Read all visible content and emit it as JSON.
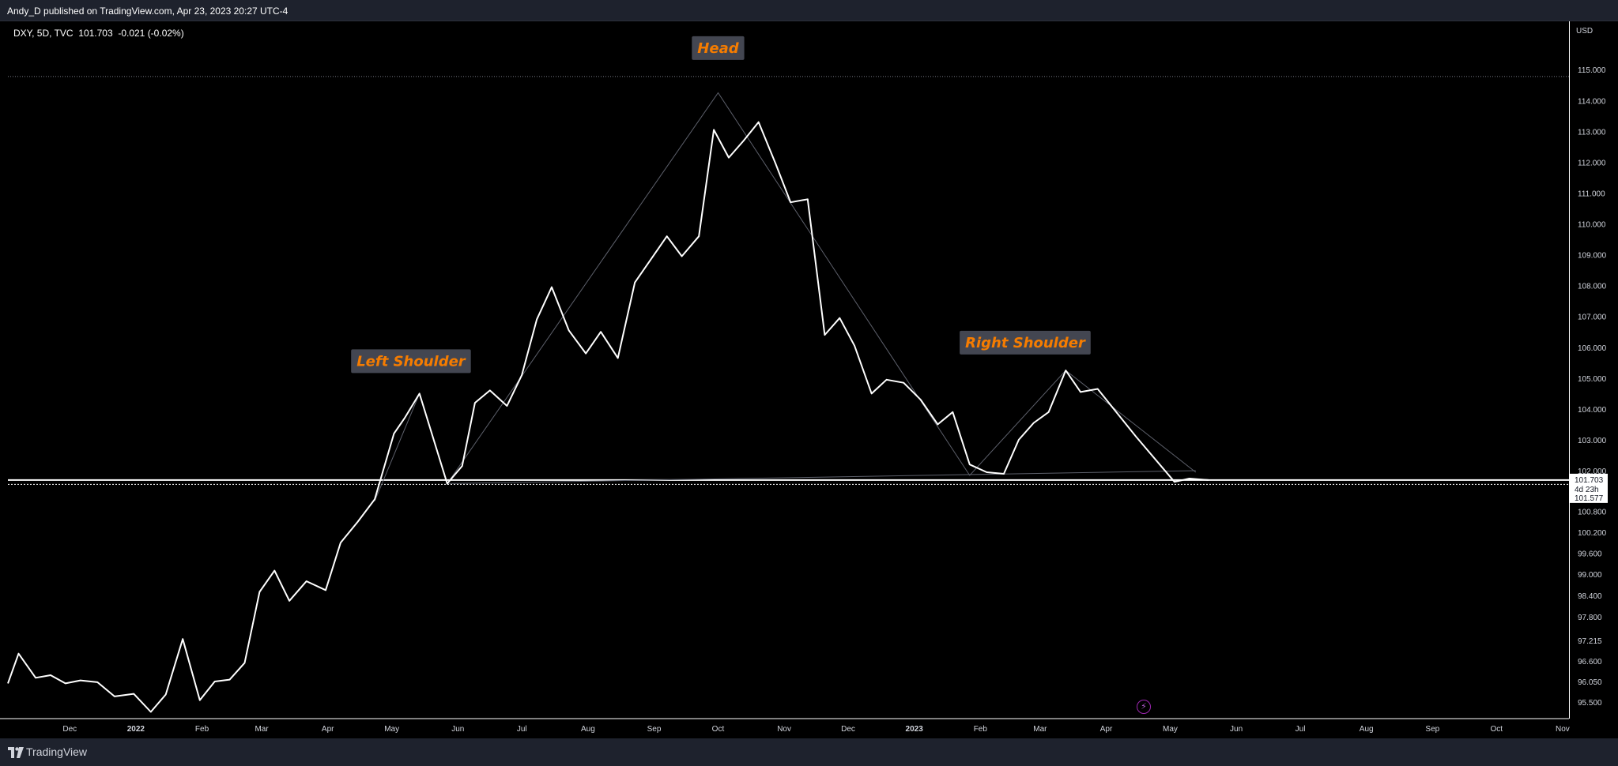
{
  "header": {
    "published": "Andy_D published on TradingView.com, Apr 23, 2023 20:27 UTC-4"
  },
  "legend": {
    "symbol": "DXY, 5D, TVC",
    "price": "101.703",
    "change": "-0.021 (-0.02%)"
  },
  "footer": {
    "brand": "TradingView"
  },
  "price_scale": {
    "currency": "USD",
    "last_price": "101.703",
    "countdown": "4d 23h",
    "prev_close": "101.577"
  },
  "annotations": [
    {
      "text": "Head",
      "anchor_date": "2022-10-01",
      "anchor_price": 115.7
    },
    {
      "text": "Left Shoulder",
      "anchor_date": "2022-05-10",
      "anchor_price": 105.55
    },
    {
      "text": "Right Shoulder",
      "anchor_date": "2023-02-22",
      "anchor_price": 106.15
    }
  ],
  "colors": {
    "background": "#000000",
    "price_line": "#ffffff",
    "pattern_line": "#5d606b",
    "label_bg": "#434651",
    "label_text": "#f57c00",
    "panel": "#1e222d"
  },
  "chart_data": {
    "type": "line",
    "title": "DXY, 5D, TVC",
    "xlabel": "",
    "ylabel": "USD",
    "ylim": [
      95.1,
      115.8
    ],
    "xlim": [
      "2021-11-02",
      "2023-11-04"
    ],
    "grid": false,
    "x_ticks": [
      {
        "label": "Dec",
        "date": "2021-12-01"
      },
      {
        "label": "2022",
        "date": "2022-01-01"
      },
      {
        "label": "Feb",
        "date": "2022-02-01"
      },
      {
        "label": "Mar",
        "date": "2022-03-01"
      },
      {
        "label": "Apr",
        "date": "2022-04-01"
      },
      {
        "label": "May",
        "date": "2022-05-01"
      },
      {
        "label": "Jun",
        "date": "2022-06-01"
      },
      {
        "label": "Jul",
        "date": "2022-07-01"
      },
      {
        "label": "Aug",
        "date": "2022-08-01"
      },
      {
        "label": "Sep",
        "date": "2022-09-01"
      },
      {
        "label": "Oct",
        "date": "2022-10-01"
      },
      {
        "label": "Nov",
        "date": "2022-11-01"
      },
      {
        "label": "Dec",
        "date": "2022-12-01"
      },
      {
        "label": "2023",
        "date": "2023-01-01"
      },
      {
        "label": "Feb",
        "date": "2023-02-01"
      },
      {
        "label": "Mar",
        "date": "2023-03-01"
      },
      {
        "label": "Apr",
        "date": "2023-04-01"
      },
      {
        "label": "May",
        "date": "2023-05-01"
      },
      {
        "label": "Jun",
        "date": "2023-06-01"
      },
      {
        "label": "Jul",
        "date": "2023-07-01"
      },
      {
        "label": "Aug",
        "date": "2023-08-01"
      },
      {
        "label": "Sep",
        "date": "2023-09-01"
      },
      {
        "label": "Oct",
        "date": "2023-10-01"
      },
      {
        "label": "Nov",
        "date": "2023-11-01"
      }
    ],
    "y_ticks": [
      "115.000",
      "114.000",
      "113.000",
      "112.000",
      "111.000",
      "110.000",
      "109.000",
      "108.000",
      "107.000",
      "106.000",
      "105.000",
      "104.000",
      "103.000",
      "102.000",
      "100.800",
      "100.200",
      "99.600",
      "99.000",
      "98.400",
      "97.800",
      "97.215",
      "96.600",
      "96.050",
      "95.500"
    ],
    "reference_lines": [
      {
        "name": "last-price",
        "price": 101.703
      },
      {
        "name": "prev-close",
        "price": 101.577
      },
      {
        "name": "high",
        "price": 114.78
      }
    ],
    "series": [
      {
        "points": [
          [
            "2021-11-02",
            96.0
          ],
          [
            "2021-11-07",
            96.82
          ],
          [
            "2021-11-15",
            96.15
          ],
          [
            "2021-11-22",
            96.22
          ],
          [
            "2021-11-29",
            96.0
          ],
          [
            "2021-12-06",
            96.08
          ],
          [
            "2021-12-14",
            96.03
          ],
          [
            "2021-12-22",
            95.65
          ],
          [
            "2021-12-31",
            95.72
          ],
          [
            "2022-01-08",
            95.25
          ],
          [
            "2022-01-15",
            95.7
          ],
          [
            "2022-01-23",
            97.25
          ],
          [
            "2022-01-31",
            95.55
          ],
          [
            "2022-02-07",
            96.05
          ],
          [
            "2022-02-14",
            96.1
          ],
          [
            "2022-02-21",
            96.55
          ],
          [
            "2022-02-28",
            98.5
          ],
          [
            "2022-03-07",
            99.1
          ],
          [
            "2022-03-14",
            98.25
          ],
          [
            "2022-03-22",
            98.8
          ],
          [
            "2022-03-31",
            98.55
          ],
          [
            "2022-04-07",
            99.9
          ],
          [
            "2022-04-15",
            100.5
          ],
          [
            "2022-04-23",
            101.15
          ],
          [
            "2022-05-02",
            103.2
          ],
          [
            "2022-05-07",
            103.7
          ],
          [
            "2022-05-14",
            104.5
          ],
          [
            "2022-05-27",
            101.6
          ],
          [
            "2022-06-03",
            102.15
          ],
          [
            "2022-06-09",
            104.2
          ],
          [
            "2022-06-16",
            104.6
          ],
          [
            "2022-06-24",
            104.1
          ],
          [
            "2022-07-01",
            105.1
          ],
          [
            "2022-07-08",
            106.9
          ],
          [
            "2022-07-15",
            107.95
          ],
          [
            "2022-07-23",
            106.55
          ],
          [
            "2022-07-31",
            105.8
          ],
          [
            "2022-08-07",
            106.5
          ],
          [
            "2022-08-15",
            105.65
          ],
          [
            "2022-08-23",
            108.1
          ],
          [
            "2022-09-07",
            109.6
          ],
          [
            "2022-09-14",
            108.95
          ],
          [
            "2022-09-22",
            109.6
          ],
          [
            "2022-09-29",
            113.05
          ],
          [
            "2022-10-06",
            112.15
          ],
          [
            "2022-10-13",
            112.7
          ],
          [
            "2022-10-20",
            113.3
          ],
          [
            "2022-10-28",
            111.95
          ],
          [
            "2022-11-04",
            110.7
          ],
          [
            "2022-11-12",
            110.8
          ],
          [
            "2022-11-20",
            106.4
          ],
          [
            "2022-11-27",
            106.95
          ],
          [
            "2022-12-04",
            106.05
          ],
          [
            "2022-12-12",
            104.5
          ],
          [
            "2022-12-19",
            104.95
          ],
          [
            "2022-12-27",
            104.85
          ],
          [
            "2023-01-04",
            104.3
          ],
          [
            "2023-01-12",
            103.5
          ],
          [
            "2023-01-19",
            103.9
          ],
          [
            "2023-01-27",
            102.2
          ],
          [
            "2023-02-04",
            101.95
          ],
          [
            "2023-02-12",
            101.9
          ],
          [
            "2023-02-19",
            103.0
          ],
          [
            "2023-02-26",
            103.55
          ],
          [
            "2023-03-05",
            103.9
          ],
          [
            "2023-03-13",
            105.25
          ],
          [
            "2023-03-20",
            104.55
          ],
          [
            "2023-03-28",
            104.65
          ],
          [
            "2023-04-15",
            103.1
          ],
          [
            "2023-05-03",
            101.65
          ],
          [
            "2023-05-10",
            101.75
          ],
          [
            "2023-05-19",
            101.703
          ]
        ]
      },
      {
        "name": "head-and-shoulders",
        "points": [
          [
            "2022-04-23",
            101.1
          ],
          [
            "2022-05-14",
            104.5
          ],
          [
            "2022-05-27",
            101.6
          ],
          [
            "2022-10-01",
            114.25
          ],
          [
            "2023-01-27",
            101.85
          ],
          [
            "2023-03-13",
            105.25
          ],
          [
            "2023-05-13",
            101.95
          ]
        ]
      },
      {
        "name": "neckline",
        "points": [
          [
            "2022-05-27",
            101.6
          ],
          [
            "2023-05-13",
            102.0
          ]
        ]
      }
    ]
  }
}
